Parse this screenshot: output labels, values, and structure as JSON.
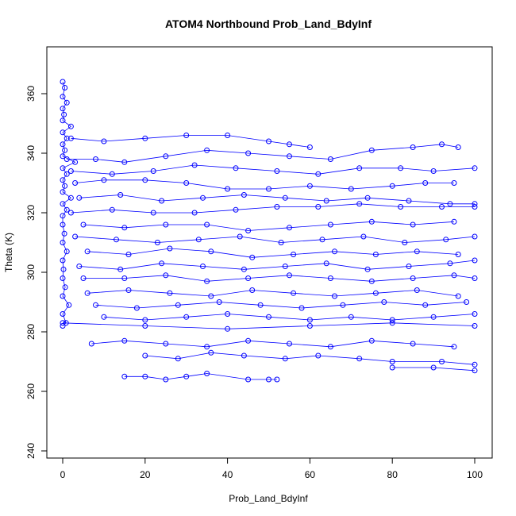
{
  "chart_data": {
    "type": "scatter",
    "title": "ATOM4 Northbound Prob_Land_BdyInf",
    "xlabel": "Prob_Land_BdyInf",
    "ylabel": "Theta (K)",
    "xlim": [
      0,
      100
    ],
    "ylim": [
      240,
      370
    ],
    "xticks": [
      0,
      20,
      40,
      60,
      80,
      100
    ],
    "yticks": [
      240,
      260,
      280,
      300,
      320,
      340,
      360
    ],
    "point_color": "#0000ff",
    "line_color": "#0000ff",
    "marker": "open-circle",
    "connected": true,
    "grid": false,
    "legend": "none",
    "series": [
      {
        "x": [
          0,
          0.5,
          0,
          1,
          0,
          0.3,
          0,
          2,
          0,
          1,
          0,
          0.5,
          0,
          3,
          0,
          1,
          0,
          0.5,
          0,
          2,
          0,
          1,
          0,
          0,
          0.4,
          0,
          1,
          0,
          0.2,
          0,
          0.6,
          0,
          1.5,
          0,
          0.8,
          0
        ],
        "y": [
          364,
          362,
          359,
          357,
          355,
          353,
          351,
          349,
          347,
          345,
          343,
          341,
          339,
          337,
          335,
          333,
          331,
          329,
          327,
          325,
          323,
          321,
          319,
          316,
          313,
          310,
          307,
          304,
          301,
          298,
          295,
          292,
          289,
          286,
          283,
          282
        ]
      },
      {
        "x": [
          2,
          10,
          20,
          30,
          40,
          50,
          60,
          55
        ],
        "y": [
          345,
          344,
          345,
          346,
          346,
          344,
          342,
          343
        ]
      },
      {
        "x": [
          1,
          8,
          15,
          25,
          35,
          45,
          55,
          65,
          75,
          85,
          92,
          96
        ],
        "y": [
          338,
          338,
          337,
          339,
          341,
          340,
          339,
          338,
          341,
          342,
          343,
          342
        ]
      },
      {
        "x": [
          2,
          12,
          22,
          32,
          42,
          52,
          62,
          72,
          82,
          90,
          100
        ],
        "y": [
          334,
          333,
          334,
          336,
          335,
          334,
          333,
          335,
          335,
          334,
          335
        ]
      },
      {
        "x": [
          3,
          10,
          20,
          30,
          40,
          50,
          60,
          70,
          80,
          88,
          95
        ],
        "y": [
          330,
          331,
          331,
          330,
          328,
          328,
          329,
          328,
          329,
          330,
          330
        ]
      },
      {
        "x": [
          4,
          14,
          24,
          34,
          44,
          54,
          64,
          74,
          84,
          94,
          100
        ],
        "y": [
          325,
          326,
          324,
          325,
          326,
          325,
          324,
          325,
          324,
          323,
          323
        ]
      },
      {
        "x": [
          2,
          12,
          22,
          32,
          42,
          52,
          62,
          72,
          82,
          92,
          100
        ],
        "y": [
          320,
          321,
          320,
          320,
          321,
          322,
          322,
          323,
          322,
          322,
          322
        ]
      },
      {
        "x": [
          5,
          15,
          25,
          35,
          45,
          55,
          65,
          75,
          85,
          95
        ],
        "y": [
          316,
          315,
          316,
          316,
          314,
          315,
          316,
          317,
          316,
          317
        ]
      },
      {
        "x": [
          3,
          13,
          23,
          33,
          43,
          53,
          63,
          73,
          83,
          93,
          100
        ],
        "y": [
          312,
          311,
          310,
          311,
          312,
          310,
          311,
          312,
          310,
          311,
          312
        ]
      },
      {
        "x": [
          6,
          16,
          26,
          36,
          46,
          56,
          66,
          76,
          86,
          96
        ],
        "y": [
          307,
          306,
          308,
          307,
          305,
          306,
          307,
          306,
          307,
          306
        ]
      },
      {
        "x": [
          4,
          14,
          24,
          34,
          44,
          54,
          64,
          74,
          84,
          94,
          100
        ],
        "y": [
          302,
          301,
          303,
          302,
          301,
          302,
          303,
          301,
          302,
          303,
          304
        ]
      },
      {
        "x": [
          5,
          15,
          25,
          35,
          45,
          55,
          65,
          75,
          85,
          95,
          100
        ],
        "y": [
          298,
          298,
          299,
          297,
          298,
          299,
          298,
          297,
          298,
          299,
          298
        ]
      },
      {
        "x": [
          6,
          16,
          26,
          36,
          46,
          56,
          66,
          76,
          86,
          96
        ],
        "y": [
          293,
          294,
          293,
          292,
          294,
          293,
          292,
          293,
          294,
          292
        ]
      },
      {
        "x": [
          8,
          18,
          28,
          38,
          48,
          58,
          68,
          78,
          88,
          98
        ],
        "y": [
          289,
          288,
          289,
          290,
          289,
          288,
          289,
          290,
          289,
          290
        ]
      },
      {
        "x": [
          10,
          20,
          30,
          40,
          50,
          60,
          70,
          80,
          90,
          100
        ],
        "y": [
          285,
          284,
          285,
          286,
          285,
          284,
          285,
          284,
          285,
          286
        ]
      },
      {
        "x": [
          0,
          20,
          40,
          60,
          80,
          100
        ],
        "y": [
          283,
          282,
          281,
          282,
          283,
          282
        ]
      },
      {
        "x": [
          7,
          15,
          25,
          35,
          45,
          55,
          65,
          75,
          85,
          95
        ],
        "y": [
          276,
          277,
          276,
          275,
          277,
          276,
          275,
          277,
          276,
          275
        ]
      },
      {
        "x": [
          20,
          28,
          36,
          44,
          54,
          62,
          72,
          80,
          92,
          100
        ],
        "y": [
          272,
          271,
          273,
          272,
          271,
          272,
          271,
          270,
          270,
          269
        ]
      },
      {
        "x": [
          15,
          20,
          25,
          30,
          35,
          45,
          50,
          52
        ],
        "y": [
          265,
          265,
          264,
          265,
          266,
          264,
          264,
          264
        ]
      },
      {
        "x": [
          80,
          90,
          100
        ],
        "y": [
          268,
          268,
          267
        ]
      }
    ]
  }
}
